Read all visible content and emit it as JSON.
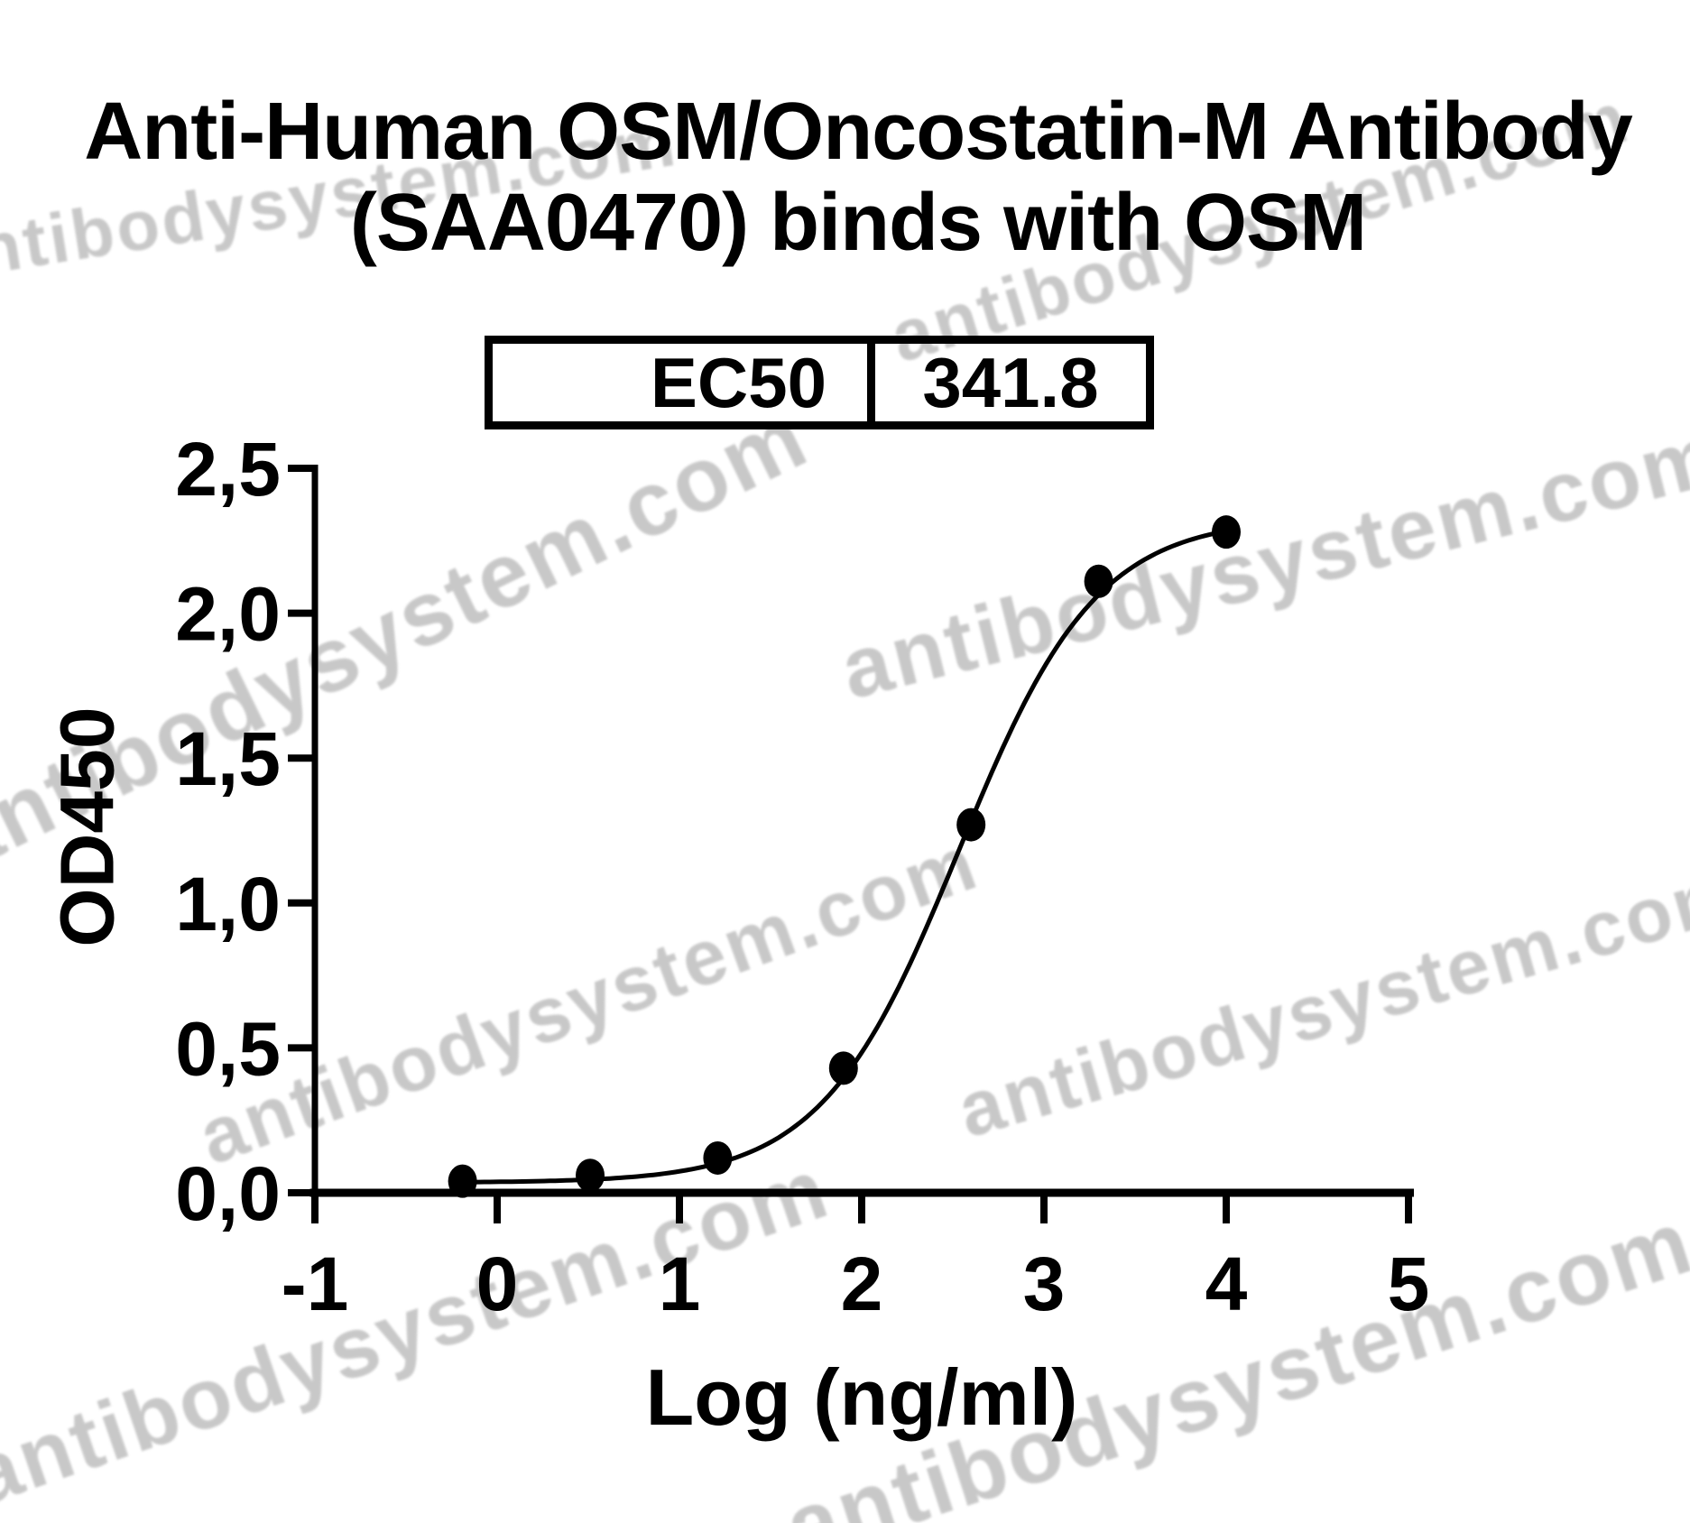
{
  "page": {
    "background_color": "#ffffff",
    "text_color": "#000000"
  },
  "title": {
    "line1": "Anti-Human OSM/Oncostatin-M Antibody",
    "line2": "(SAA0470) binds with OSM"
  },
  "ec50_table": {
    "label": "EC50",
    "value": "341.8"
  },
  "watermark": {
    "text": "antibodysystem.com",
    "color": "#c3c3c3"
  },
  "chart_data": {
    "type": "scatter",
    "title": "Anti-Human OSM/Oncostatin-M Antibody (SAA0470) binds with OSM",
    "xlabel": "Log (ng/ml)",
    "ylabel": "OD450",
    "xlim": [
      -1,
      5
    ],
    "ylim": [
      0,
      2.5
    ],
    "grid": false,
    "x_ticks": [
      -1,
      0,
      1,
      2,
      3,
      4,
      5
    ],
    "x_tick_labels": [
      "-1",
      "0",
      "1",
      "2",
      "3",
      "4",
      "5"
    ],
    "y_ticks": [
      0,
      0.5,
      1,
      1.5,
      2,
      2.5
    ],
    "y_tick_labels": [
      "0,0",
      "0,5",
      "1,0",
      "1,5",
      "2,0",
      "2,5"
    ],
    "points": [
      {
        "x": -0.19,
        "y": 0.04
      },
      {
        "x": 0.51,
        "y": 0.06
      },
      {
        "x": 1.21,
        "y": 0.12
      },
      {
        "x": 1.9,
        "y": 0.43
      },
      {
        "x": 2.6,
        "y": 1.27
      },
      {
        "x": 3.3,
        "y": 2.11
      },
      {
        "x": 4.0,
        "y": 2.28
      }
    ],
    "fit_curve": {
      "model": "4PL sigmoid",
      "bottom": 0.035,
      "top": 2.33,
      "log_ec50": 2.534,
      "hill": 1.15,
      "x_start": -0.19,
      "x_end": 4.0
    },
    "ec50": 341.8,
    "marker": {
      "shape": "circle",
      "color": "#000000"
    },
    "line_color": "#000000",
    "axis_color": "#000000"
  }
}
